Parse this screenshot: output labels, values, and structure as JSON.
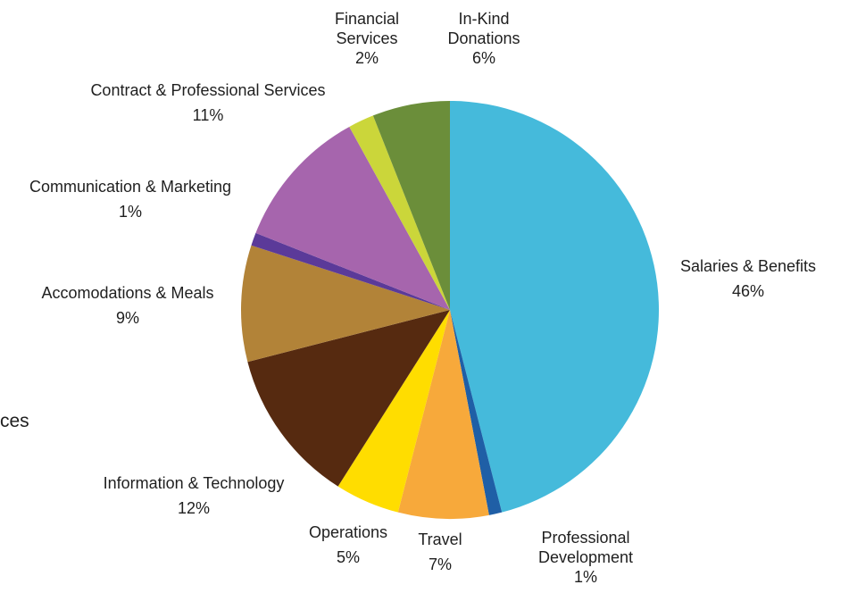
{
  "chart_data": {
    "type": "pie",
    "title": "",
    "start_angle_deg": 0,
    "direction": "clockwise",
    "slices": [
      {
        "name": "Salaries & Benefits",
        "display_name": [
          "Salaries & Benefits"
        ],
        "percent_label": "46%",
        "value": 46,
        "color": "#45BADB"
      },
      {
        "name": "Professional Development",
        "display_name": [
          "Professional",
          "Development"
        ],
        "percent_label": "1%",
        "value": 1,
        "color": "#1F5FA6"
      },
      {
        "name": "Travel",
        "display_name": [
          "Travel"
        ],
        "percent_label": "7%",
        "value": 7,
        "color": "#F7A93B"
      },
      {
        "name": "Operations",
        "display_name": [
          "Operations"
        ],
        "percent_label": "5%",
        "value": 5,
        "color": "#FFDD00"
      },
      {
        "name": "Information & Technology",
        "display_name": [
          "Information & Technology"
        ],
        "percent_label": "12%",
        "value": 12,
        "color": "#562A10"
      },
      {
        "name": "Accomodations & Meals",
        "display_name": [
          "Accomodations & Meals"
        ],
        "percent_label": "9%",
        "value": 9,
        "color": "#B28338"
      },
      {
        "name": "Communication & Marketing",
        "display_name": [
          "Communication & Marketing"
        ],
        "percent_label": "1%",
        "value": 1,
        "color": "#5B3A99"
      },
      {
        "name": "Contract & Professional Services",
        "display_name": [
          "Contract & Professional Services"
        ],
        "percent_label": "11%",
        "value": 11,
        "color": "#A665AD"
      },
      {
        "name": "Financial Services",
        "display_name": [
          "Financial",
          "Services"
        ],
        "percent_label": "2%",
        "value": 2,
        "color": "#CBD63A"
      },
      {
        "name": "In-Kind Donations",
        "display_name": [
          "In-Kind",
          "Donations"
        ],
        "percent_label": "6%",
        "value": 6,
        "color": "#6B8E3A"
      }
    ]
  },
  "clipped_text": "ces"
}
